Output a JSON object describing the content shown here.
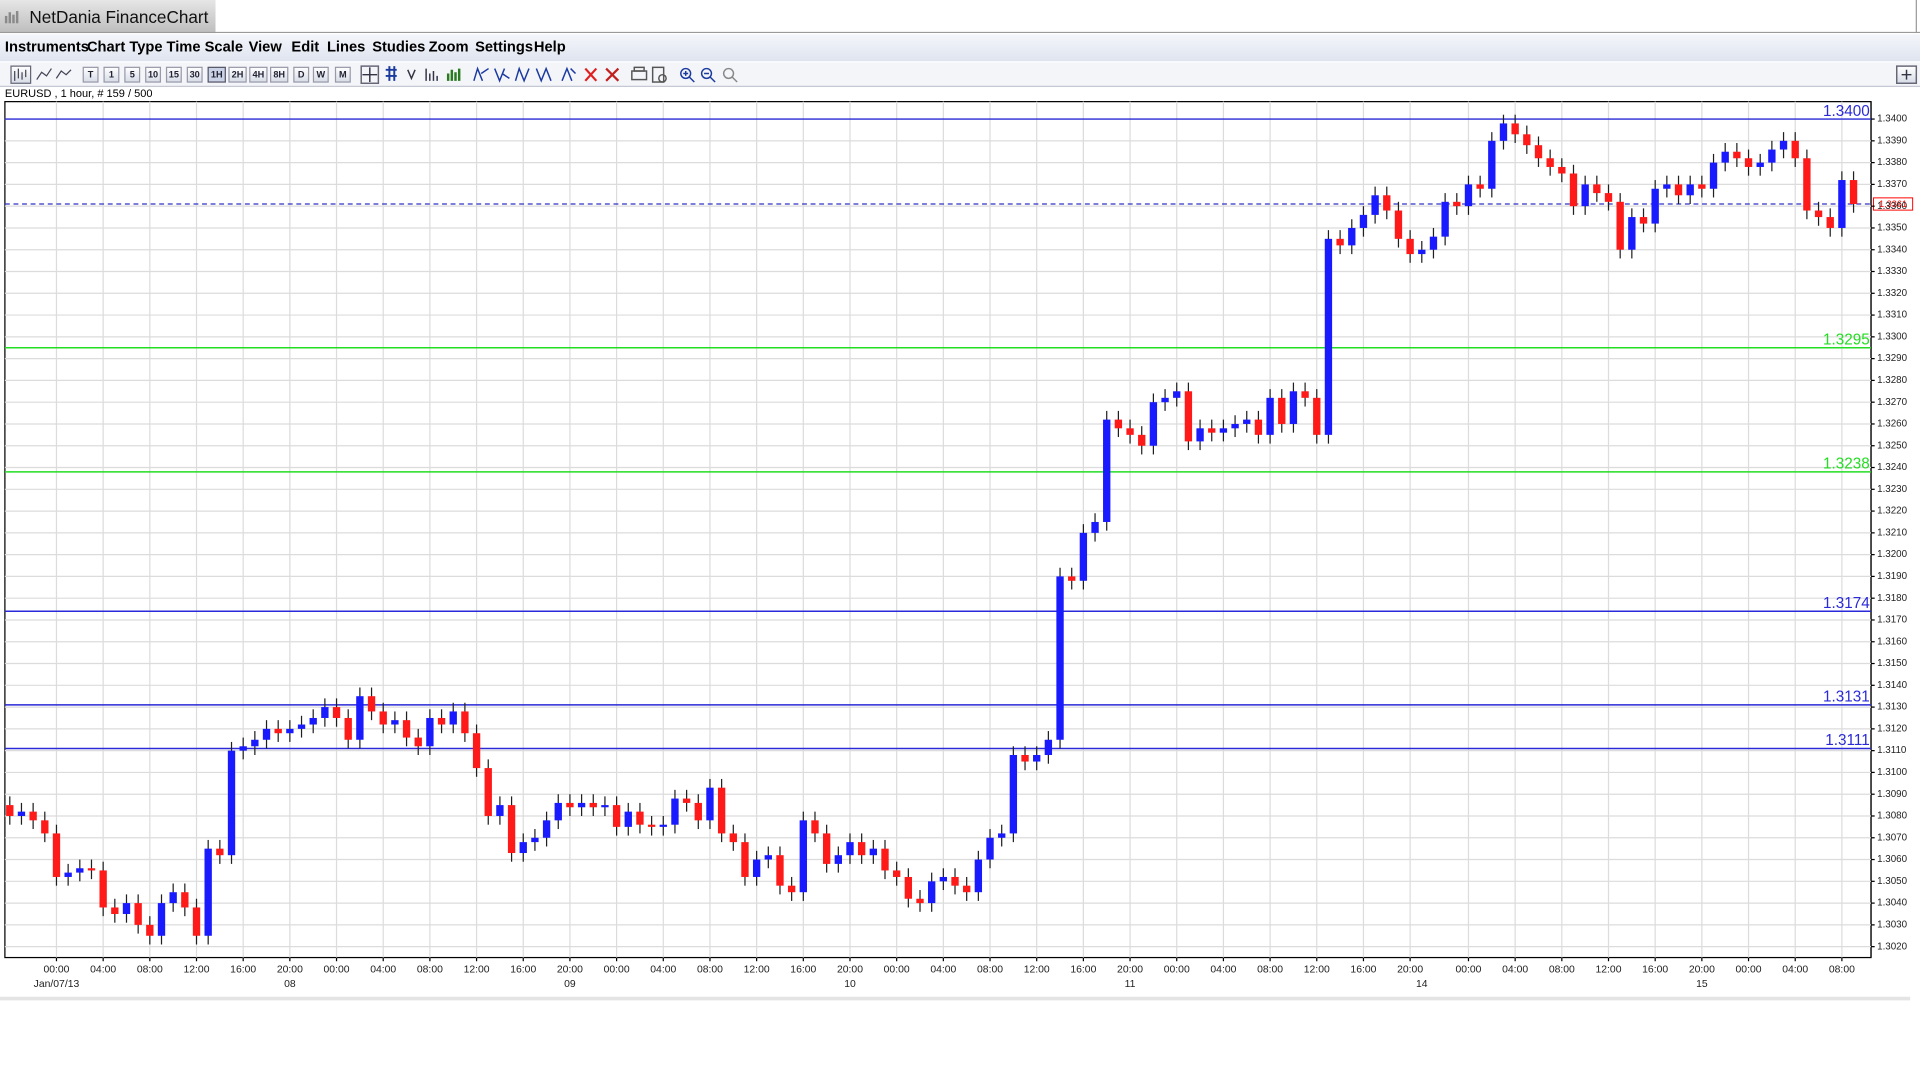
{
  "window": {
    "title": "NetDania FinanceChart"
  },
  "menu": [
    "Instruments",
    "Chart Type",
    "Time Scale",
    "View",
    "Edit",
    "Lines",
    "Studies",
    "Zoom",
    "Settings",
    "Help"
  ],
  "toolbar": {
    "timescales": [
      "T",
      "1",
      "5",
      "10",
      "15",
      "30",
      "1H",
      "2H",
      "4H",
      "8H",
      "D",
      "W",
      "M"
    ]
  },
  "chart_data": {
    "type": "candlestick",
    "title": "EURUSD , 1 hour, # 159 / 500",
    "categories": [
      null,
      null,
      null,
      null,
      "00:00",
      null,
      null,
      null,
      "04:00",
      null,
      null,
      null,
      "08:00",
      null,
      null,
      null,
      "12:00",
      null,
      null,
      null,
      "16:00",
      null,
      null,
      null,
      "20:00",
      null,
      null,
      null,
      "00:00",
      null,
      null,
      null,
      "04:00",
      null,
      null,
      null,
      "08:00",
      null,
      null,
      null,
      "12:00",
      null,
      null,
      null,
      "16:00",
      null,
      null,
      null,
      "20:00",
      null,
      null,
      null,
      "00:00",
      null,
      null,
      null,
      "04:00",
      null,
      null,
      null,
      "08:00",
      null,
      null,
      null,
      "12:00",
      null,
      null,
      null,
      "16:00",
      null,
      null,
      null,
      "20:00",
      null,
      null,
      null,
      "00:00",
      null,
      null,
      null,
      "04:00",
      null,
      null,
      null,
      "08:00",
      null,
      null,
      null,
      "12:00",
      null,
      null,
      null,
      "16:00",
      null,
      null,
      null,
      "20:00",
      null,
      null,
      null,
      "00:00",
      null,
      null,
      null,
      "04:00",
      null,
      null,
      null,
      "08:00",
      null,
      null,
      null,
      "12:00",
      null,
      null,
      null,
      "16:00",
      null,
      null,
      null,
      "20:00",
      null,
      null,
      null,
      null,
      "00:00",
      null,
      null,
      null,
      "04:00",
      null,
      null,
      null,
      "08:00",
      null,
      null,
      null,
      "12:00",
      null,
      null,
      null,
      "16:00",
      null,
      null,
      null,
      "20:00",
      null,
      null,
      null,
      "00:00",
      null,
      null,
      null,
      "04:00",
      null,
      null,
      null,
      "08:00",
      null
    ],
    "date_labels": [
      null,
      null,
      null,
      null,
      "Jan/07/13",
      null,
      null,
      null,
      null,
      null,
      null,
      null,
      null,
      null,
      null,
      null,
      null,
      null,
      null,
      null,
      null,
      null,
      null,
      null,
      "08",
      null,
      null,
      null,
      null,
      null,
      null,
      null,
      null,
      null,
      null,
      null,
      null,
      null,
      null,
      null,
      null,
      null,
      null,
      null,
      null,
      null,
      null,
      null,
      "09",
      null,
      null,
      null,
      null,
      null,
      null,
      null,
      null,
      null,
      null,
      null,
      null,
      null,
      null,
      null,
      null,
      null,
      null,
      null,
      null,
      null,
      null,
      null,
      "10",
      null,
      null,
      null,
      null,
      null,
      null,
      null,
      null,
      null,
      null,
      null,
      null,
      null,
      null,
      null,
      null,
      null,
      null,
      null,
      null,
      null,
      null,
      null,
      "11",
      null,
      null,
      null,
      null,
      null,
      null,
      null,
      null,
      null,
      null,
      null,
      null,
      null,
      null,
      null,
      null,
      null,
      null,
      null,
      null,
      null,
      null,
      null,
      null,
      "14",
      null,
      null,
      null,
      null,
      null,
      null,
      null,
      null,
      null,
      null,
      null,
      null,
      null,
      null,
      null,
      null,
      null,
      null,
      null,
      null,
      null,
      null,
      null,
      "15",
      null,
      null,
      null,
      null,
      null,
      null,
      null,
      null,
      null
    ],
    "open": [
      1.3085,
      1.308,
      1.3082,
      1.3078,
      1.3072,
      1.3052,
      1.3054,
      1.3056,
      1.3055,
      1.3038,
      1.3035,
      1.304,
      1.303,
      1.3025,
      1.304,
      1.3045,
      1.3038,
      1.3025,
      1.3065,
      1.3062,
      1.311,
      1.3112,
      1.3115,
      1.312,
      1.3118,
      1.312,
      1.3122,
      1.3125,
      1.313,
      1.3125,
      1.3115,
      1.3135,
      1.3128,
      1.3122,
      1.3124,
      1.3116,
      1.3112,
      1.3125,
      1.3122,
      1.3128,
      1.3118,
      1.3102,
      1.308,
      1.3085,
      1.3063,
      1.3068,
      1.307,
      1.3078,
      1.3086,
      1.3084,
      1.3086,
      1.3084,
      1.3085,
      1.3075,
      1.3082,
      1.3076,
      1.3075,
      1.3076,
      1.3088,
      1.3086,
      1.3078,
      1.3093,
      1.3072,
      1.3068,
      1.3052,
      1.306,
      1.3062,
      1.3048,
      1.3045,
      1.3078,
      1.3072,
      1.3058,
      1.3062,
      1.3068,
      1.3062,
      1.3065,
      1.3055,
      1.3052,
      1.3042,
      1.304,
      1.305,
      1.3052,
      1.3048,
      1.3045,
      1.306,
      1.307,
      1.3072,
      1.3108,
      1.3105,
      1.3108,
      1.3115,
      1.319,
      1.3188,
      1.321,
      1.3215,
      1.3262,
      1.3258,
      1.3255,
      1.325,
      1.327,
      1.3272,
      1.3275,
      1.3252,
      1.3258,
      1.3256,
      1.3258,
      1.326,
      1.3262,
      1.3255,
      1.3272,
      1.326,
      1.3275,
      1.3272,
      1.3255,
      1.3345,
      1.3342,
      1.335,
      1.3356,
      1.3365,
      1.3358,
      1.3345,
      1.3338,
      1.334,
      1.3346,
      1.3362,
      1.336,
      1.337,
      1.3368,
      1.339,
      1.3398,
      1.3393,
      1.3388,
      1.3382,
      1.3378,
      1.3375,
      1.336,
      1.337,
      1.3366,
      1.3362,
      1.334,
      1.3355,
      1.3352,
      1.3368,
      1.337,
      1.3365,
      1.337,
      1.3368,
      1.338,
      1.3385,
      1.3382,
      1.3378,
      1.338,
      1.3386,
      1.339,
      1.3382,
      1.3358,
      1.3355,
      1.335,
      1.3372
    ],
    "high": [
      1.3089,
      1.3086,
      1.3086,
      1.3082,
      1.3076,
      1.3058,
      1.306,
      1.306,
      1.3059,
      1.3042,
      1.3044,
      1.3044,
      1.3034,
      1.3044,
      1.3049,
      1.3049,
      1.3042,
      1.3069,
      1.3069,
      1.3114,
      1.3116,
      1.3119,
      1.3124,
      1.3124,
      1.3124,
      1.3126,
      1.3129,
      1.3134,
      1.3134,
      1.3129,
      1.3139,
      1.3139,
      1.3132,
      1.3128,
      1.3128,
      1.312,
      1.3129,
      1.3129,
      1.3132,
      1.3132,
      1.3122,
      1.3106,
      1.3089,
      1.3089,
      1.3072,
      1.3074,
      1.3082,
      1.309,
      1.309,
      1.309,
      1.309,
      1.3089,
      1.3089,
      1.3086,
      1.3086,
      1.308,
      1.308,
      1.3092,
      1.3092,
      1.309,
      1.3097,
      1.3097,
      1.3076,
      1.3072,
      1.3064,
      1.3066,
      1.3066,
      1.3052,
      1.3082,
      1.3082,
      1.3076,
      1.3066,
      1.3072,
      1.3072,
      1.3069,
      1.3069,
      1.3059,
      1.3056,
      1.3046,
      1.3054,
      1.3056,
      1.3056,
      1.3052,
      1.3064,
      1.3074,
      1.3076,
      1.3112,
      1.3112,
      1.3112,
      1.3119,
      1.3194,
      1.3194,
      1.3214,
      1.3219,
      1.3266,
      1.3266,
      1.3262,
      1.3259,
      1.3274,
      1.3276,
      1.3279,
      1.3279,
      1.3262,
      1.3262,
      1.3262,
      1.3264,
      1.3266,
      1.3266,
      1.3276,
      1.3276,
      1.3279,
      1.3279,
      1.3276,
      1.3349,
      1.3349,
      1.3354,
      1.336,
      1.3369,
      1.3369,
      1.3362,
      1.3349,
      1.3344,
      1.335,
      1.3366,
      1.3366,
      1.3374,
      1.3374,
      1.3394,
      1.3402,
      1.3402,
      1.3397,
      1.3392,
      1.3386,
      1.3382,
      1.3379,
      1.3374,
      1.3374,
      1.337,
      1.3366,
      1.3359,
      1.3359,
      1.3372,
      1.3374,
      1.3374,
      1.3374,
      1.3374,
      1.3384,
      1.3389,
      1.3389,
      1.3386,
      1.3384,
      1.339,
      1.3394,
      1.3394,
      1.3386,
      1.3362,
      1.3359,
      1.3376,
      1.3376
    ],
    "low": [
      1.3076,
      1.3076,
      1.3074,
      1.3068,
      1.3048,
      1.3048,
      1.305,
      1.3051,
      1.3034,
      1.3031,
      1.3031,
      1.3026,
      1.3021,
      1.3021,
      1.3036,
      1.3034,
      1.3021,
      1.3021,
      1.3058,
      1.3058,
      1.3106,
      1.3108,
      1.3111,
      1.3114,
      1.3114,
      1.3116,
      1.3118,
      1.3121,
      1.3121,
      1.3111,
      1.3111,
      1.3124,
      1.3118,
      1.3118,
      1.3112,
      1.3108,
      1.3108,
      1.3118,
      1.3118,
      1.3114,
      1.3098,
      1.3076,
      1.3076,
      1.3059,
      1.3059,
      1.3064,
      1.3066,
      1.3074,
      1.308,
      1.308,
      1.308,
      1.308,
      1.3071,
      1.3071,
      1.3072,
      1.3071,
      1.3071,
      1.3072,
      1.3082,
      1.3074,
      1.3074,
      1.3068,
      1.3064,
      1.3048,
      1.3048,
      1.3056,
      1.3044,
      1.3041,
      1.3041,
      1.3068,
      1.3054,
      1.3054,
      1.3058,
      1.3058,
      1.3058,
      1.3051,
      1.3048,
      1.3038,
      1.3036,
      1.3036,
      1.3046,
      1.3044,
      1.3041,
      1.3041,
      1.3056,
      1.3066,
      1.3068,
      1.3101,
      1.3101,
      1.3104,
      1.3111,
      1.3184,
      1.3184,
      1.3206,
      1.3211,
      1.3254,
      1.3251,
      1.3246,
      1.3246,
      1.3266,
      1.3268,
      1.3248,
      1.3248,
      1.3252,
      1.3252,
      1.3254,
      1.3256,
      1.3251,
      1.3251,
      1.3256,
      1.3256,
      1.3268,
      1.3251,
      1.3251,
      1.3338,
      1.3338,
      1.3346,
      1.3352,
      1.3354,
      1.3341,
      1.3334,
      1.3334,
      1.3336,
      1.3342,
      1.3356,
      1.3356,
      1.3364,
      1.3364,
      1.3386,
      1.3389,
      1.3384,
      1.3378,
      1.3374,
      1.3371,
      1.3356,
      1.3356,
      1.3362,
      1.3358,
      1.3336,
      1.3336,
      1.3348,
      1.3348,
      1.3364,
      1.3361,
      1.3361,
      1.3364,
      1.3364,
      1.3376,
      1.3378,
      1.3374,
      1.3374,
      1.3376,
      1.3382,
      1.3378,
      1.3354,
      1.3351,
      1.3346,
      1.3346,
      1.3357
    ],
    "close": [
      1.308,
      1.3082,
      1.3078,
      1.3072,
      1.3052,
      1.3054,
      1.3056,
      1.3055,
      1.3038,
      1.3035,
      1.304,
      1.303,
      1.3025,
      1.304,
      1.3045,
      1.3038,
      1.3025,
      1.3065,
      1.3062,
      1.311,
      1.3112,
      1.3115,
      1.312,
      1.3118,
      1.312,
      1.3122,
      1.3125,
      1.313,
      1.3125,
      1.3115,
      1.3135,
      1.3128,
      1.3122,
      1.3124,
      1.3116,
      1.3112,
      1.3125,
      1.3122,
      1.3128,
      1.3118,
      1.3102,
      1.308,
      1.3085,
      1.3063,
      1.3068,
      1.307,
      1.3078,
      1.3086,
      1.3084,
      1.3086,
      1.3084,
      1.3085,
      1.3075,
      1.3082,
      1.3076,
      1.3075,
      1.3076,
      1.3088,
      1.3086,
      1.3078,
      1.3093,
      1.3072,
      1.3068,
      1.3052,
      1.306,
      1.3062,
      1.3048,
      1.3045,
      1.3078,
      1.3072,
      1.3058,
      1.3062,
      1.3068,
      1.3062,
      1.3065,
      1.3055,
      1.3052,
      1.3042,
      1.304,
      1.305,
      1.3052,
      1.3048,
      1.3045,
      1.306,
      1.307,
      1.3072,
      1.3108,
      1.3105,
      1.3108,
      1.3115,
      1.319,
      1.3188,
      1.321,
      1.3215,
      1.3262,
      1.3258,
      1.3255,
      1.325,
      1.327,
      1.3272,
      1.3275,
      1.3252,
      1.3258,
      1.3256,
      1.3258,
      1.326,
      1.3262,
      1.3255,
      1.3272,
      1.326,
      1.3275,
      1.3272,
      1.3255,
      1.3345,
      1.3342,
      1.335,
      1.3356,
      1.3365,
      1.3358,
      1.3345,
      1.3338,
      1.334,
      1.3346,
      1.3362,
      1.336,
      1.337,
      1.3368,
      1.339,
      1.3398,
      1.3393,
      1.3388,
      1.3382,
      1.3378,
      1.3375,
      1.336,
      1.337,
      1.3366,
      1.3362,
      1.334,
      1.3355,
      1.3352,
      1.3368,
      1.337,
      1.3365,
      1.337,
      1.3368,
      1.338,
      1.3385,
      1.3382,
      1.3378,
      1.338,
      1.3386,
      1.339,
      1.3382,
      1.3358,
      1.3355,
      1.335,
      1.3372,
      1.3361
    ],
    "up_color": "#1a1aff",
    "down_color": "#ff1a1a",
    "wick_color": "#202020",
    "ylim": [
      1.3015,
      1.3408
    ],
    "yticks": [
      {
        "value": 1.302,
        "label": "1.3020"
      },
      {
        "value": 1.303,
        "label": "1.3030"
      },
      {
        "value": 1.304,
        "label": "1.3040"
      },
      {
        "value": 1.305,
        "label": "1.3050"
      },
      {
        "value": 1.306,
        "label": "1.3060"
      },
      {
        "value": 1.307,
        "label": "1.3070"
      },
      {
        "value": 1.308,
        "label": "1.3080"
      },
      {
        "value": 1.309,
        "label": "1.3090"
      },
      {
        "value": 1.31,
        "label": "1.3100"
      },
      {
        "value": 1.311,
        "label": "1.3110"
      },
      {
        "value": 1.312,
        "label": "1.3120"
      },
      {
        "value": 1.313,
        "label": "1.3130"
      },
      {
        "value": 1.314,
        "label": "1.3140"
      },
      {
        "value": 1.315,
        "label": "1.3150"
      },
      {
        "value": 1.316,
        "label": "1.3160"
      },
      {
        "value": 1.317,
        "label": "1.3170"
      },
      {
        "value": 1.318,
        "label": "1.3180"
      },
      {
        "value": 1.319,
        "label": "1.3190"
      },
      {
        "value": 1.32,
        "label": "1.3200"
      },
      {
        "value": 1.321,
        "label": "1.3210"
      },
      {
        "value": 1.322,
        "label": "1.3220"
      },
      {
        "value": 1.323,
        "label": "1.3230"
      },
      {
        "value": 1.324,
        "label": "1.3240"
      },
      {
        "value": 1.325,
        "label": "1.3250"
      },
      {
        "value": 1.326,
        "label": "1.3260"
      },
      {
        "value": 1.327,
        "label": "1.3270"
      },
      {
        "value": 1.328,
        "label": "1.3280"
      },
      {
        "value": 1.329,
        "label": "1.3290"
      },
      {
        "value": 1.33,
        "label": "1.3300"
      },
      {
        "value": 1.331,
        "label": "1.3310"
      },
      {
        "value": 1.332,
        "label": "1.3320"
      },
      {
        "value": 1.333,
        "label": "1.3330"
      },
      {
        "value": 1.334,
        "label": "1.3340"
      },
      {
        "value": 1.335,
        "label": "1.3350"
      },
      {
        "value": 1.336,
        "label": "1.3360"
      },
      {
        "value": 1.337,
        "label": "1.3370"
      },
      {
        "value": 1.338,
        "label": "1.3380"
      },
      {
        "value": 1.339,
        "label": "1.3390"
      },
      {
        "value": 1.34,
        "label": "1.3400"
      }
    ],
    "grid": true,
    "levels": [
      {
        "value": 1.34,
        "label": "1.3400",
        "color": "#2a2ad8"
      },
      {
        "value": 1.3295,
        "label": "1.3295",
        "color": "#22dd22"
      },
      {
        "value": 1.3238,
        "label": "1.3238",
        "color": "#22dd22"
      },
      {
        "value": 1.3174,
        "label": "1.3174",
        "color": "#2a2ad8"
      },
      {
        "value": 1.3131,
        "label": "1.3131",
        "color": "#2a2ad8"
      },
      {
        "value": 1.3111,
        "label": "1.3111",
        "color": "#2a2ad8"
      }
    ],
    "last_price": {
      "value": 1.3361,
      "line_color": "#3232c8",
      "label_color": "#ff0000"
    }
  }
}
